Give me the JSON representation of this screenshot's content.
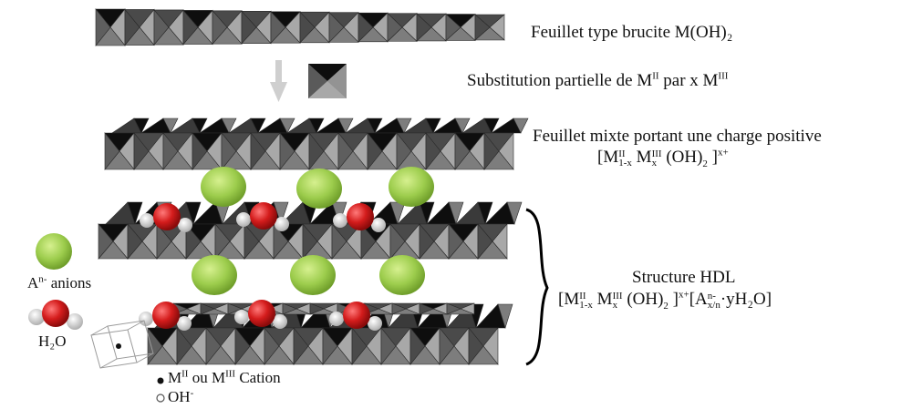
{
  "labels": {
    "brucite_sheet": "Feuillet type brucite M(OH)₂",
    "substitution": {
      "text1": "Substitution partielle de M",
      "sup1": "II",
      "text2": " par x M",
      "sup2": "III"
    },
    "mixed_sheet_title": "Feuillet mixte portant une charge positive",
    "mixed_formula": {
      "open": "[M",
      "sup_a": "II",
      "sub_a": "1-x",
      "m2": " M",
      "sup_b": "III",
      "sub_b": "x",
      "rest": " (OH)",
      "sub_c": "2",
      "close": " ]",
      "sup_c": "x+"
    },
    "hdl_title": "Structure HDL",
    "hdl_formula": {
      "open": "[M",
      "sup_a": "II",
      "sub_a": "1-x",
      "m2": " M",
      "sup_b": "III",
      "sub_b": "x",
      "rest": " (OH)",
      "sub_c": "2",
      "close": " ]",
      "sup_c": "x+",
      "anion_open": "[A",
      "sup_d": "n-",
      "sub_d": "x/n",
      "tail": "·yH₂O]"
    }
  },
  "legend": {
    "anion": {
      "prefix": "A",
      "sup": "n-",
      "text": " anions"
    },
    "water": "H₂O",
    "cation": {
      "m1": "M",
      "sup1": "II",
      "mid": " ou M",
      "sup2": "III",
      "text": "  Cation"
    },
    "oh": {
      "text": "OH",
      "sup": "-"
    }
  },
  "colors": {
    "octa_light": "#a8a8a8",
    "octa_mid": "#7d7d7d",
    "octa_dark": "#4a4a4a",
    "octa_black": "#0e0e0e",
    "anion_green": "#9ccc4c",
    "oxygen_red": "#d41c1c",
    "hydrogen": "#dcdcdc"
  }
}
